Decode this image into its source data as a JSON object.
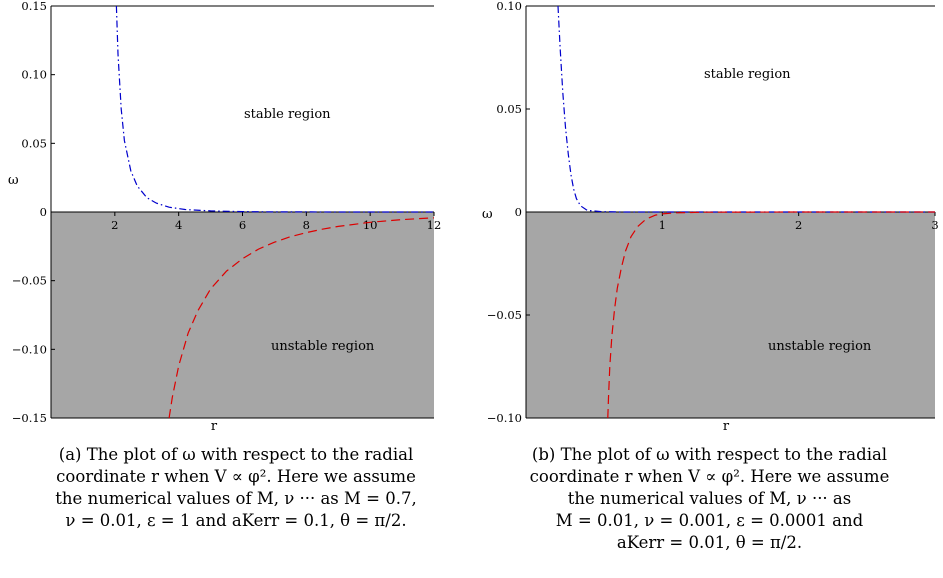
{
  "chart_data": [
    {
      "type": "line",
      "xlabel": "r",
      "ylabel": "ω",
      "xlim": [
        0,
        12
      ],
      "ylim": [
        -0.15,
        0.15
      ],
      "xticks": [
        2,
        4,
        6,
        8,
        10,
        12
      ],
      "yticks": [
        -0.15,
        -0.1,
        -0.05,
        0,
        0.05,
        0.1,
        0.15
      ],
      "ytick_labels": [
        "−0.15",
        "−0.10",
        "−0.05",
        "0",
        "0.05",
        "0.10",
        "0.15"
      ],
      "regions": {
        "stable": "stable region",
        "unstable": "unstable region"
      },
      "unstable_shade": "#a6a6a6",
      "series": [
        {
          "style": "dash-dot",
          "color": "#0000cc",
          "x": [
            2.05,
            2.1,
            2.2,
            2.3,
            2.5,
            2.7,
            3.0,
            3.3,
            3.7,
            4.2,
            5.0,
            6.0,
            7.0,
            8.0,
            9.0,
            10.0,
            12.0
          ],
          "y": [
            0.15,
            0.115,
            0.075,
            0.052,
            0.03,
            0.019,
            0.0105,
            0.0065,
            0.0035,
            0.0018,
            0.0008,
            0.0003,
            0.0001,
            5e-05,
            2e-05,
            1e-05,
            0.0
          ]
        },
        {
          "style": "dashed",
          "color": "#dd0000",
          "x": [
            3.7,
            3.8,
            4.0,
            4.3,
            4.6,
            5.0,
            5.5,
            6.0,
            6.5,
            7.0,
            7.5,
            8.0,
            8.5,
            9.0,
            10.0,
            11.0,
            12.0
          ],
          "y": [
            -0.15,
            -0.135,
            -0.112,
            -0.088,
            -0.072,
            -0.056,
            -0.043,
            -0.034,
            -0.027,
            -0.022,
            -0.018,
            -0.015,
            -0.0125,
            -0.0105,
            -0.0075,
            -0.0055,
            -0.0042
          ]
        }
      ],
      "caption": [
        "(a) The plot of ω with respect to the radial",
        "coordinate r when V ∝ φ². Here we assume",
        "the numerical values of M, ν ··· as M = 0.7,",
        "ν = 0.01, ε = 1 and aKerr = 0.1,  θ = π/2."
      ]
    },
    {
      "type": "line",
      "xlabel": "r",
      "ylabel": "ω",
      "xlim": [
        0,
        3
      ],
      "ylim": [
        -0.1,
        0.1
      ],
      "xticks": [
        1,
        2,
        3
      ],
      "yticks": [
        -0.1,
        -0.05,
        0,
        0.05,
        0.1
      ],
      "ytick_labels": [
        "−0.10",
        "−0.05",
        "0",
        "0.05",
        "0.10"
      ],
      "regions": {
        "stable": "stable region",
        "unstable": "unstable region"
      },
      "unstable_shade": "#a6a6a6",
      "series": [
        {
          "style": "dash-dot",
          "color": "#0000cc",
          "x": [
            0.235,
            0.25,
            0.27,
            0.29,
            0.31,
            0.33,
            0.35,
            0.37,
            0.4,
            0.45,
            0.55,
            0.7,
            1.0,
            2.0,
            3.0
          ],
          "y": [
            0.1,
            0.08,
            0.058,
            0.041,
            0.028,
            0.018,
            0.011,
            0.0065,
            0.003,
            0.0008,
            0.0002,
            0.0,
            0.0,
            0.0,
            0.0
          ]
        },
        {
          "style": "dashed",
          "color": "#dd0000",
          "x": [
            0.6,
            0.605,
            0.615,
            0.63,
            0.65,
            0.67,
            0.7,
            0.73,
            0.77,
            0.82,
            0.88,
            0.95,
            1.0,
            1.1,
            1.3,
            2.0,
            3.0
          ],
          "y": [
            -0.1,
            -0.09,
            -0.075,
            -0.06,
            -0.047,
            -0.037,
            -0.027,
            -0.019,
            -0.012,
            -0.007,
            -0.0035,
            -0.0015,
            -0.0009,
            -0.0004,
            -0.0001,
            0.0,
            0.0
          ]
        }
      ],
      "caption": [
        "(b) The plot of ω with respect to the radial",
        "coordinate r when V ∝ φ². Here we assume",
        "the numerical values of M, ν ··· as",
        "M = 0.01, ν = 0.001, ε = 0.0001 and",
        "aKerr = 0.01,  θ = π/2."
      ]
    }
  ]
}
